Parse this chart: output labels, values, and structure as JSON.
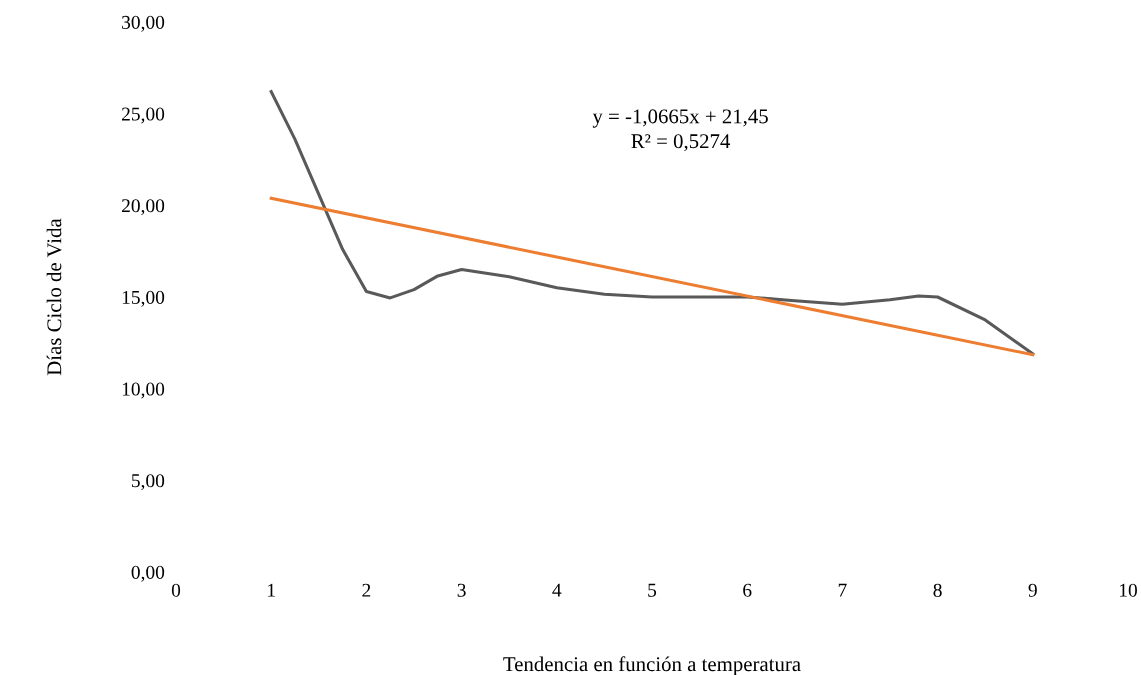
{
  "chart_data": {
    "type": "line",
    "xlabel": "Tendencia en función a temperatura",
    "ylabel": "Días Ciclo de Vida",
    "x": [
      1,
      1.25,
      1.5,
      1.75,
      2,
      2.25,
      2.5,
      2.75,
      3,
      3.5,
      4,
      4.5,
      5,
      5.5,
      6,
      6.5,
      7,
      7.5,
      7.8,
      8,
      8.5,
      9
    ],
    "series": [
      {
        "color": "#595959",
        "values": [
          26.2,
          23.6,
          20.6,
          17.6,
          15.3,
          14.95,
          15.4,
          16.15,
          16.5,
          16.1,
          15.5,
          15.15,
          15.0,
          15.0,
          15.0,
          14.8,
          14.6,
          14.85,
          15.05,
          15.0,
          13.75,
          11.9
        ]
      },
      {
        "color": "#ed7d31",
        "x": [
          1,
          9
        ],
        "values": [
          20.38,
          11.85
        ]
      }
    ],
    "xlim": [
      0,
      10
    ],
    "xticks": [
      0,
      1,
      2,
      3,
      4,
      5,
      6,
      7,
      8,
      9,
      10
    ],
    "ylim": [
      0,
      30
    ],
    "yticks": [
      {
        "value": 0,
        "label": "0,00"
      },
      {
        "value": 5,
        "label": "5,00"
      },
      {
        "value": 10,
        "label": "10,00"
      },
      {
        "value": 15,
        "label": "15,00"
      },
      {
        "value": 20,
        "label": "20,00"
      },
      {
        "value": 25,
        "label": "25,00"
      },
      {
        "value": 30,
        "label": "30,00"
      }
    ],
    "annotations": [
      "y = -1,0665x + 21,45",
      "R² = 0,5274"
    ],
    "grid": false,
    "legend": false
  }
}
